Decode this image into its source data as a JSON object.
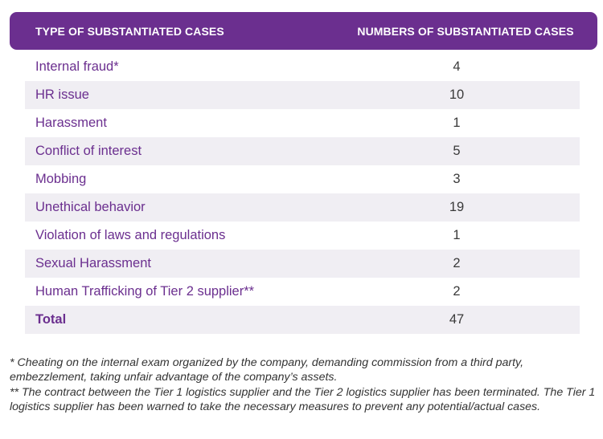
{
  "table": {
    "header": {
      "type_label": "TYPE OF SUBSTANTIATED CASES",
      "number_label": "NUMBERS OF SUBSTANTIATED CASES"
    },
    "rows": [
      {
        "type": "Internal fraud*",
        "count": "4"
      },
      {
        "type": "HR issue",
        "count": "10"
      },
      {
        "type": "Harassment",
        "count": "1"
      },
      {
        "type": "Conflict of interest",
        "count": "5"
      },
      {
        "type": "Mobbing",
        "count": "3"
      },
      {
        "type": "Unethical behavior",
        "count": "19"
      },
      {
        "type": "Violation of laws and regulations",
        "count": "1"
      },
      {
        "type": "Sexual Harassment",
        "count": "2"
      },
      {
        "type": "Human Trafficking of Tier 2 supplier**",
        "count": "2"
      }
    ],
    "total": {
      "label": "Total",
      "count": "47"
    }
  },
  "footnotes": {
    "note1": "* Cheating on the internal exam organized by the company, demanding commission from a third party, embezzlement, taking unfair advantage of the company’s assets.",
    "note2": "** The contract between the Tier 1 logistics supplier and the Tier 2 logistics supplier has been terminated. The Tier 1 logistics supplier has been warned to take the necessary measures to prevent any potential/actual cases."
  },
  "colors": {
    "header_bg": "#6b2f8f",
    "label_text": "#6b2f8f",
    "stripe": "#f0eef3"
  }
}
